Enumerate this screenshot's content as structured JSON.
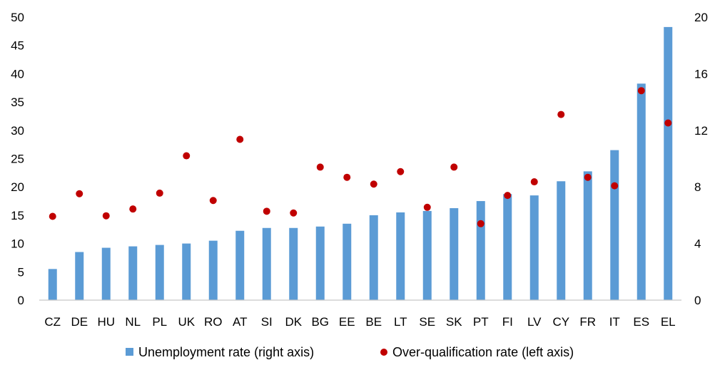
{
  "chart_data": {
    "type": "bar",
    "title": "",
    "categories": [
      "CZ",
      "DE",
      "HU",
      "NL",
      "PL",
      "UK",
      "RO",
      "AT",
      "SI",
      "DK",
      "BG",
      "EE",
      "BE",
      "LT",
      "SE",
      "SK",
      "PT",
      "FI",
      "LV",
      "CY",
      "FR",
      "IT",
      "ES",
      "EL"
    ],
    "series": [
      {
        "name": "Unemployment rate (right axis)",
        "kind": "bar",
        "axis": "right",
        "color": "#5B9BD5",
        "values": [
          2.2,
          3.4,
          3.7,
          3.8,
          3.9,
          4.0,
          4.2,
          4.9,
          5.1,
          5.1,
          5.2,
          5.4,
          6.0,
          6.2,
          6.3,
          6.5,
          7.0,
          7.5,
          7.4,
          8.4,
          9.1,
          10.6,
          15.3,
          19.3
        ]
      },
      {
        "name": "Over-qualification rate (left axis)",
        "kind": "scatter",
        "axis": "left",
        "color": "#C00000",
        "values": [
          14.8,
          18.8,
          14.9,
          16.1,
          18.9,
          25.5,
          17.6,
          28.4,
          15.7,
          15.4,
          23.5,
          21.7,
          20.5,
          22.7,
          16.4,
          23.5,
          13.5,
          18.5,
          20.9,
          32.8,
          21.7,
          20.2,
          37.0,
          31.3
        ]
      }
    ],
    "left_axis": {
      "ylim": [
        0,
        50
      ],
      "ticks": [
        "0",
        "5",
        "10",
        "15",
        "20",
        "25",
        "30",
        "35",
        "40",
        "45",
        "50"
      ]
    },
    "right_axis": {
      "ylim": [
        0,
        20
      ],
      "ticks": [
        "0",
        "4",
        "8",
        "12",
        "16",
        "20"
      ]
    },
    "grid": false,
    "legend_position": "bottom"
  }
}
